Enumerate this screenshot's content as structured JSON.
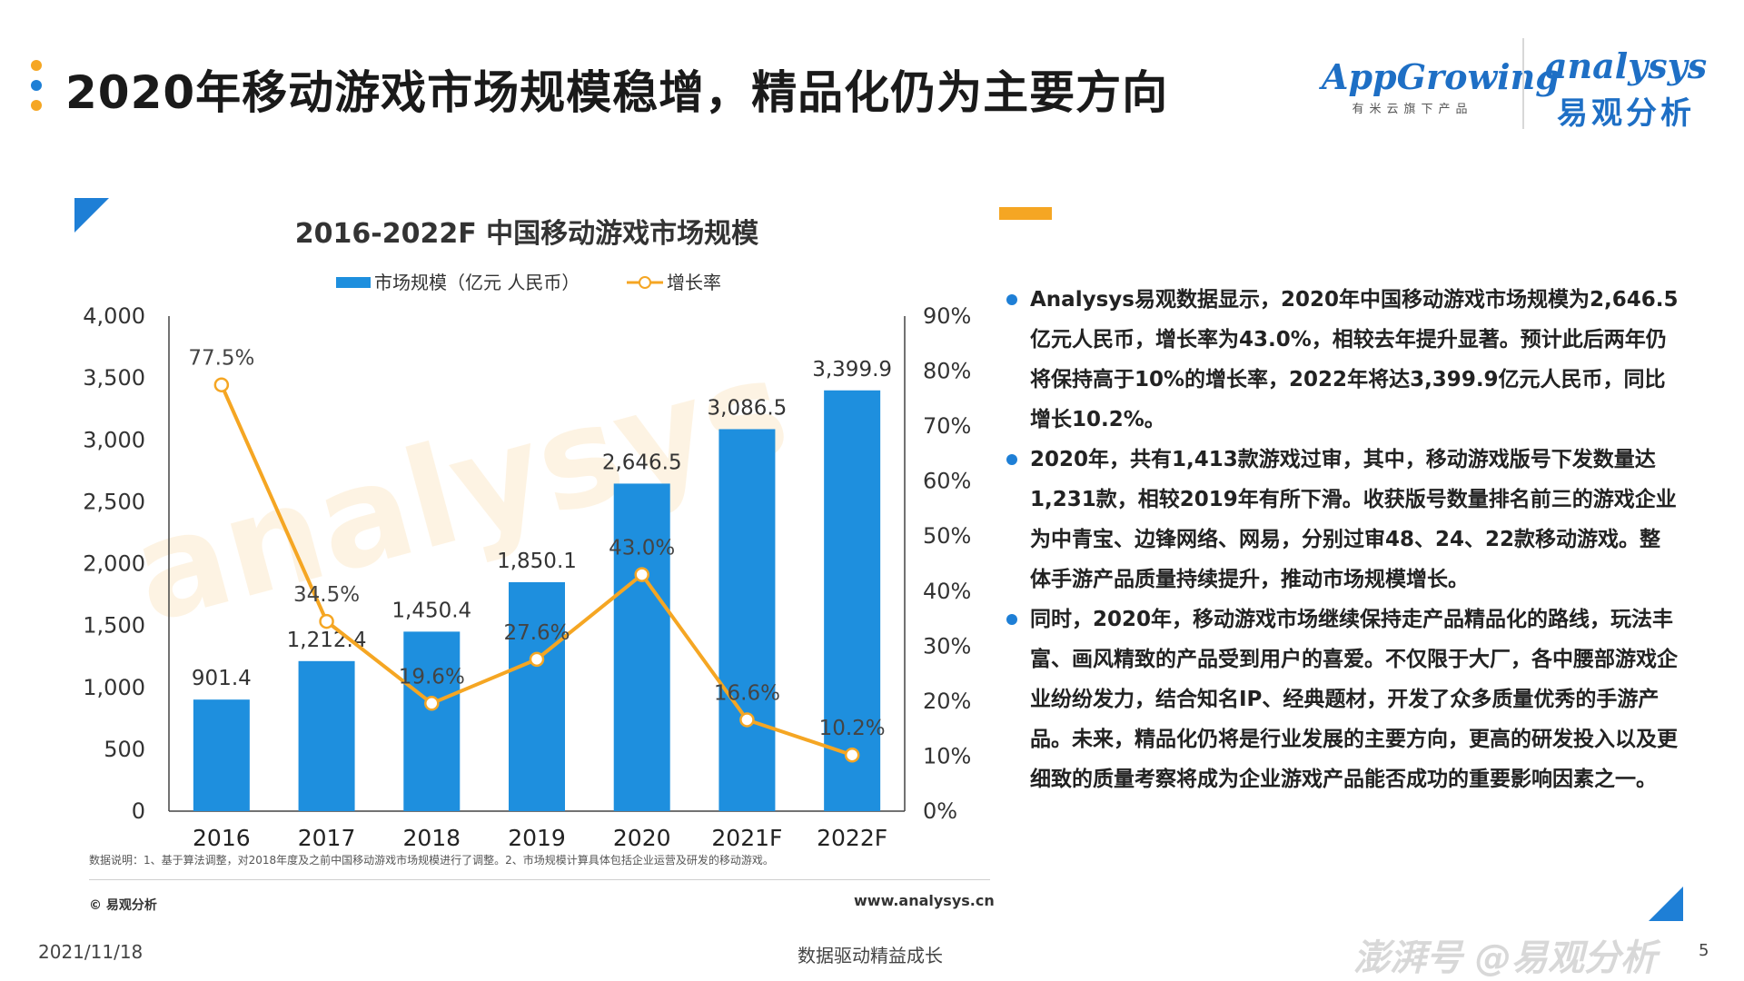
{
  "title": "2020年移动游戏市场规模稳增，精品化仍为主要方向",
  "logos": {
    "appgrowing": "AppGrowing",
    "appgrowing_sub": "有米云旗下产品",
    "analysys_en": "analysys",
    "analysys_cn": "易观分析"
  },
  "colors": {
    "bar": "#1e8fde",
    "line": "#f5a623",
    "accent_blue": "#1e7fd6",
    "accent_orange": "#f5a623",
    "dots": [
      "#f5a623",
      "#1e7fd6",
      "#f5a623"
    ]
  },
  "chart_data": {
    "type": "bar",
    "title": "2016-2022F 中国移动游戏市场规模",
    "categories": [
      "2016",
      "2017",
      "2018",
      "2019",
      "2020",
      "2021F",
      "2022F"
    ],
    "series": [
      {
        "name": "市场规模（亿元 人民币）",
        "type": "bar",
        "axis": "left",
        "values": [
          901.4,
          1212.4,
          1450.4,
          1850.1,
          2646.5,
          3086.5,
          3399.9
        ],
        "labels": [
          "901.4",
          "1,212.4",
          "1,450.4",
          "1,850.1",
          "2,646.5",
          "3,086.5",
          "3,399.9"
        ]
      },
      {
        "name": "增长率",
        "type": "line",
        "axis": "right",
        "values": [
          77.5,
          34.5,
          19.6,
          27.6,
          43.0,
          16.6,
          10.2
        ],
        "labels": [
          "77.5%",
          "34.5%",
          "19.6%",
          "27.6%",
          "43.0%",
          "16.6%",
          "10.2%"
        ]
      }
    ],
    "ylim_left": [
      0,
      4000
    ],
    "yticks_left": [
      "0",
      "500",
      "1,000",
      "1,500",
      "2,000",
      "2,500",
      "3,000",
      "3,500",
      "4,000"
    ],
    "ylim_right": [
      0,
      90
    ],
    "yticks_right": [
      "0%",
      "10%",
      "20%",
      "30%",
      "40%",
      "50%",
      "60%",
      "70%",
      "80%",
      "90%"
    ],
    "legend": "top-center",
    "grid": false
  },
  "bullets": [
    "Analysys易观数据显示，2020年中国移动游戏市场规模为2,646.5亿元人民币，增长率为43.0%，相较去年提升显著。预计此后两年仍将保持高于10%的增长率，2022年将达3,399.9亿元人民币，同比增长10.2%。",
    "2020年，共有1,413款游戏过审，其中，移动游戏版号下发数量达1,231款，相较2019年有所下滑。收获版号数量排名前三的游戏企业为中青宝、边锋网络、网易，分别过审48、24、22款移动游戏。整体手游产品质量持续提升，推动市场规模增长。",
    "同时，2020年，移动游戏市场继续保持走产品精品化的路线，玩法丰富、画风精致的产品受到用户的喜爱。不仅限于大厂，各中腰部游戏企业纷纷发力，结合知名IP、经典题材，开发了众多质量优秀的手游产品。未来，精品化仍将是行业发展的主要方向，更高的研发投入以及更细致的质量考察将成为企业游戏产品能否成功的重要影响因素之一。"
  ],
  "note": "数据说明：1、基于算法调整，对2018年度及之前中国移动游戏市场规模进行了调整。2、市场规模计算具体包括企业运营及研发的移动游戏。",
  "copyright": "© 易观分析",
  "website": "www.analysys.cn",
  "date": "2021/11/18",
  "slogan": "数据驱动精益成长",
  "page_number": "5",
  "watermark": "澎湃号 @易观分析"
}
